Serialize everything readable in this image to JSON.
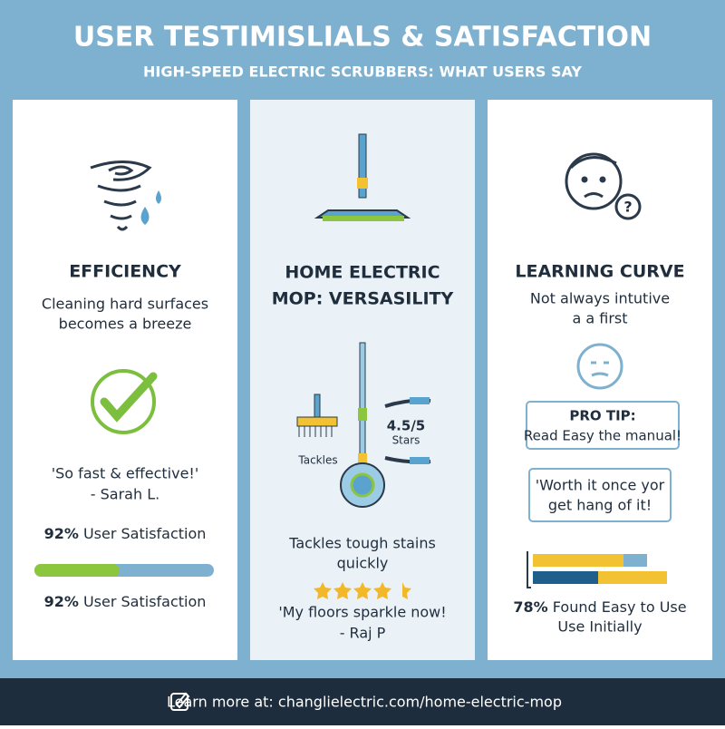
{
  "header": {
    "title": "USER TESTIMISLIALS & SATISFACTION",
    "subtitle": "HIGH-SPEED ELECTRIC SCRUBBERS: WHAT USERS SAY"
  },
  "panels": [
    {
      "heading": [
        "EFFICIENCY"
      ],
      "description": [
        "Cleaning hard surfaces",
        "becomes a breeze"
      ],
      "quote": [
        "'So fast & effective!'",
        "- Sarah L."
      ],
      "stats": [
        {
          "percent": "92%",
          "label": " User Satisfaction"
        },
        {
          "percent": "92%",
          "label": " User Satisfaction"
        }
      ]
    },
    {
      "heading": [
        "HOME ELECTRIC",
        "MOP: VERSASILITY"
      ],
      "rating": "4.5/5",
      "rating_unit": "Stars",
      "icon_label": "Tackles",
      "description": [
        "Tackles tough stains",
        "quickly"
      ],
      "quote": [
        "'My floors sparkle now!",
        "- Raj P"
      ]
    },
    {
      "heading": [
        "LEARNING CURVE"
      ],
      "description": [
        "Not always intutive",
        "a a first"
      ],
      "tip": {
        "title": "PRO TIP:",
        "text": "Read Easy the manual!"
      },
      "quote": [
        "'Worth it once yor",
        "get hang of it!"
      ],
      "stats": [
        {
          "percent": "78%",
          "label": " Found Easy to Use"
        }
      ],
      "stat_extra": "Use Initially"
    }
  ],
  "footer": {
    "text": "Learn more at: changlielectric.com/home-electric-mop"
  }
}
